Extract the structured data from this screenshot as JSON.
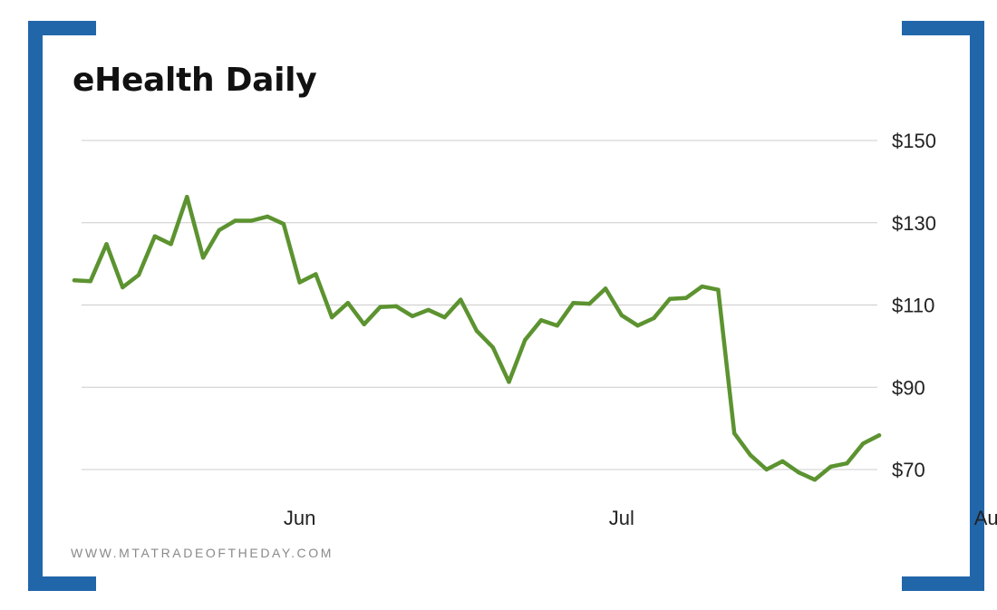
{
  "header": {
    "title": "eHealth Daily"
  },
  "footer": {
    "text": "WWW.MTATRADEOFTHEDAY.COM"
  },
  "colors": {
    "bracket": "#2266aa",
    "line": "#5c9330",
    "grid": "#cccccc"
  },
  "chart_data": {
    "type": "line",
    "title": "eHealth Daily",
    "xlabel": "",
    "ylabel": "",
    "grid": true,
    "y_axis_position": "right",
    "ylim": [
      63,
      152
    ],
    "y_ticks": [
      {
        "value": 150,
        "label": "$150"
      },
      {
        "value": 130,
        "label": "$130"
      },
      {
        "value": 110,
        "label": "$110"
      },
      {
        "value": 90,
        "label": "$90"
      },
      {
        "value": 70,
        "label": "$70"
      }
    ],
    "x_ticks": [
      {
        "label": "Jun",
        "index": 14
      },
      {
        "label": "Jul",
        "index": 34
      },
      {
        "label": "Aug",
        "index": 57
      }
    ],
    "series": [
      {
        "values": [
          116.0,
          115.8,
          124.8,
          114.3,
          117.3,
          126.7,
          124.8,
          136.3,
          121.5,
          128.2,
          130.5,
          130.5,
          131.5,
          129.7,
          115.5,
          117.5,
          107.0,
          110.5,
          105.3,
          109.5,
          109.7,
          107.3,
          108.8,
          107.0,
          111.3,
          103.7,
          99.7,
          91.3,
          101.5,
          106.3,
          105.0,
          110.5,
          110.3,
          114.0,
          107.5,
          105.0,
          106.8,
          111.5,
          111.7,
          114.5,
          113.7,
          78.8,
          73.5,
          70.0,
          72.0,
          69.3,
          67.5,
          70.7,
          71.5,
          76.3,
          78.3
        ]
      }
    ]
  }
}
